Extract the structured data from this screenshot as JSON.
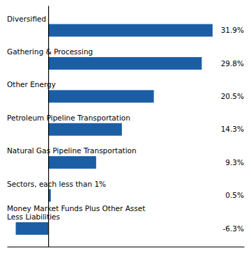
{
  "chart_data": {
    "type": "bar",
    "orientation": "horizontal",
    "categories": [
      "Money Market Funds Plus Other Asset\nLess Liabilities",
      "Sectors, each less than 1%",
      "Natural Gas Pipeline Transportation",
      "Petroleum Pipeline Transportation",
      "Other Energy",
      "Gathering & Processing",
      "Diversified"
    ],
    "values": [
      -6.3,
      0.5,
      9.3,
      14.3,
      20.5,
      29.8,
      31.9
    ],
    "value_labels": [
      "-6.3%",
      "0.5%",
      "9.3%",
      "14.3%",
      "20.5%",
      "29.8%",
      "31.9%"
    ],
    "color": "#1B5EA6",
    "xlim": [
      -8,
      38
    ],
    "xticks": [],
    "tick_labels": false,
    "data_labels": true,
    "grid": false
  }
}
